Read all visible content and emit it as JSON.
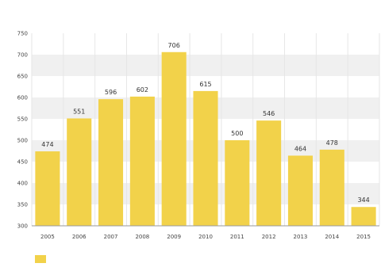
{
  "chart_data": {
    "type": "bar",
    "title": "",
    "xlabel": "",
    "ylabel": "",
    "categories": [
      "2005",
      "2006",
      "2007",
      "2008",
      "2009",
      "2010",
      "2011",
      "2012",
      "2013",
      "2014",
      "2015"
    ],
    "series": [
      {
        "values": [
          474,
          551,
          596,
          602,
          706,
          615,
          500,
          546,
          464,
          478,
          344
        ]
      }
    ],
    "ylim": [
      300,
      750
    ],
    "yticks": [
      300,
      350,
      400,
      450,
      500,
      550,
      600,
      650,
      700,
      750
    ],
    "ytick_labels": [
      "300",
      "350",
      "400",
      "450",
      "500",
      "550",
      "600",
      "650",
      "700",
      "750"
    ],
    "grid": true,
    "legend": {
      "position": "bottom-left",
      "label": ""
    },
    "colors": {
      "bar": "#f2d24a",
      "grid_band": "#f0f0f0",
      "axis": "#999999"
    }
  }
}
